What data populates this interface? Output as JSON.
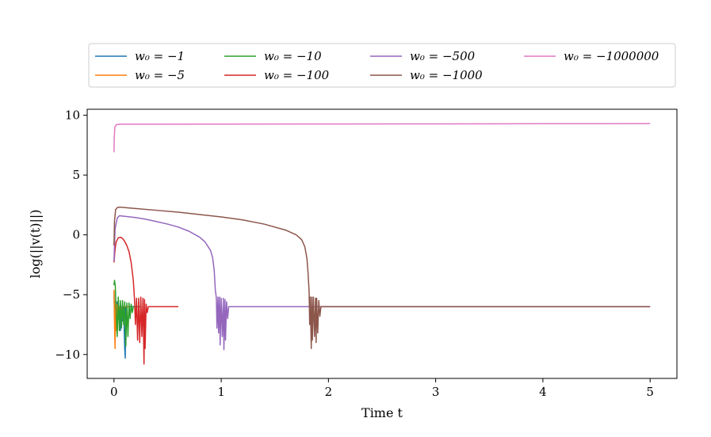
{
  "chart_data": {
    "type": "line",
    "title": "",
    "xlabel": "Time t",
    "ylabel": "log(||v(t)||)",
    "xlim": [
      -0.25,
      5.25
    ],
    "ylim": [
      -12,
      10.5
    ],
    "x_ticks": [
      0,
      1,
      2,
      3,
      4,
      5
    ],
    "x_tick_labels": [
      "0",
      "1",
      "2",
      "3",
      "4",
      "5"
    ],
    "y_ticks": [
      -10,
      -5,
      0,
      5,
      10
    ],
    "y_tick_labels": [
      "−10",
      "−5",
      "0",
      "5",
      "10"
    ],
    "grid": false,
    "legend_position": "top (above plot), 4 columns",
    "series": [
      {
        "name": "w₀ = −1",
        "color": "#1f77b4",
        "points": [
          [
            0,
            -4.8
          ],
          [
            0.005,
            -6.5
          ],
          [
            0.01,
            -8.2
          ],
          [
            0.015,
            -6.0
          ],
          [
            0.02,
            -7.5
          ],
          [
            0.03,
            -5.6
          ],
          [
            0.04,
            -7.0
          ],
          [
            0.05,
            -6.0
          ],
          [
            0.06,
            -8.0
          ],
          [
            0.07,
            -6.0
          ],
          [
            0.08,
            -7.2
          ],
          [
            0.09,
            -6.0
          ],
          [
            0.1,
            -9.5
          ],
          [
            0.105,
            -10.3
          ],
          [
            0.11,
            -6.0
          ],
          [
            0.13,
            -6.0
          ],
          [
            0.2,
            -6.0
          ]
        ]
      },
      {
        "name": "w₀ = −5",
        "color": "#ff7f0e",
        "points": [
          [
            0,
            -4.6
          ],
          [
            0.005,
            -7.5
          ],
          [
            0.01,
            -9.5
          ],
          [
            0.015,
            -5.5
          ],
          [
            0.02,
            -8.0
          ],
          [
            0.025,
            -5.8
          ],
          [
            0.03,
            -7.2
          ],
          [
            0.035,
            -6.0
          ],
          [
            0.04,
            -6.6
          ],
          [
            0.05,
            -6.0
          ],
          [
            0.06,
            -6.3
          ],
          [
            0.08,
            -6.0
          ],
          [
            0.15,
            -6.0
          ]
        ]
      },
      {
        "name": "w₀ = −10",
        "color": "#2ca02c",
        "points": [
          [
            0,
            -4.2
          ],
          [
            0.005,
            -3.8
          ],
          [
            0.012,
            -4.3
          ],
          [
            0.02,
            -6.3
          ],
          [
            0.03,
            -8.5
          ],
          [
            0.04,
            -5.2
          ],
          [
            0.05,
            -8.0
          ],
          [
            0.06,
            -5.5
          ],
          [
            0.07,
            -7.8
          ],
          [
            0.08,
            -5.5
          ],
          [
            0.09,
            -7.5
          ],
          [
            0.1,
            -5.6
          ],
          [
            0.11,
            -9.3
          ],
          [
            0.12,
            -5.7
          ],
          [
            0.13,
            -8.5
          ],
          [
            0.14,
            -5.7
          ],
          [
            0.15,
            -7.0
          ],
          [
            0.16,
            -5.8
          ],
          [
            0.17,
            -6.5
          ],
          [
            0.18,
            -6.0
          ],
          [
            0.2,
            -6.0
          ],
          [
            0.25,
            -6.0
          ]
        ]
      },
      {
        "name": "w₀ = −100",
        "color": "#d62728",
        "points": [
          [
            0,
            -2.3
          ],
          [
            0.01,
            -1.2
          ],
          [
            0.02,
            -0.6
          ],
          [
            0.04,
            -0.25
          ],
          [
            0.06,
            -0.2
          ],
          [
            0.08,
            -0.3
          ],
          [
            0.1,
            -0.55
          ],
          [
            0.12,
            -0.9
          ],
          [
            0.14,
            -1.4
          ],
          [
            0.16,
            -2.3
          ],
          [
            0.18,
            -3.8
          ],
          [
            0.19,
            -5.2
          ],
          [
            0.2,
            -7.5
          ],
          [
            0.21,
            -5.3
          ],
          [
            0.22,
            -8.8
          ],
          [
            0.23,
            -5.3
          ],
          [
            0.24,
            -9.0
          ],
          [
            0.25,
            -5.2
          ],
          [
            0.26,
            -8.5
          ],
          [
            0.27,
            -5.3
          ],
          [
            0.28,
            -10.8
          ],
          [
            0.285,
            -5.4
          ],
          [
            0.29,
            -9.5
          ],
          [
            0.3,
            -5.8
          ],
          [
            0.31,
            -6.5
          ],
          [
            0.32,
            -6.0
          ],
          [
            0.35,
            -6.0
          ],
          [
            0.5,
            -6.0
          ],
          [
            0.6,
            -6.0
          ]
        ]
      },
      {
        "name": "w₀ = −500",
        "color": "#9467bd",
        "points": [
          [
            0,
            -2.2
          ],
          [
            0.01,
            0.5
          ],
          [
            0.03,
            1.4
          ],
          [
            0.05,
            1.6
          ],
          [
            0.1,
            1.55
          ],
          [
            0.2,
            1.45
          ],
          [
            0.3,
            1.3
          ],
          [
            0.4,
            1.1
          ],
          [
            0.5,
            0.9
          ],
          [
            0.6,
            0.65
          ],
          [
            0.7,
            0.3
          ],
          [
            0.8,
            -0.2
          ],
          [
            0.85,
            -0.6
          ],
          [
            0.9,
            -1.3
          ],
          [
            0.92,
            -1.9
          ],
          [
            0.935,
            -3.0
          ],
          [
            0.945,
            -4.6
          ],
          [
            0.955,
            -5.3
          ],
          [
            0.96,
            -7.8
          ],
          [
            0.97,
            -5.2
          ],
          [
            0.975,
            -8.2
          ],
          [
            0.985,
            -5.2
          ],
          [
            0.99,
            -9.2
          ],
          [
            1.0,
            -5.3
          ],
          [
            1.01,
            -8.5
          ],
          [
            1.02,
            -5.3
          ],
          [
            1.025,
            -9.6
          ],
          [
            1.035,
            -5.4
          ],
          [
            1.04,
            -8.8
          ],
          [
            1.05,
            -5.6
          ],
          [
            1.06,
            -7.0
          ],
          [
            1.07,
            -6.0
          ],
          [
            1.1,
            -6.0
          ],
          [
            1.5,
            -6.0
          ],
          [
            2.0,
            -6.0
          ],
          [
            3.0,
            -6.0
          ],
          [
            4.0,
            -6.0
          ],
          [
            5.0,
            -6.0
          ]
        ]
      },
      {
        "name": "w₀ = −1000",
        "color": "#8c564b",
        "points": [
          [
            0,
            -0.9
          ],
          [
            0.005,
            1.2
          ],
          [
            0.015,
            2.1
          ],
          [
            0.03,
            2.28
          ],
          [
            0.05,
            2.32
          ],
          [
            0.2,
            2.2
          ],
          [
            0.4,
            2.05
          ],
          [
            0.6,
            1.9
          ],
          [
            0.8,
            1.7
          ],
          [
            1.0,
            1.5
          ],
          [
            1.2,
            1.25
          ],
          [
            1.4,
            0.9
          ],
          [
            1.6,
            0.4
          ],
          [
            1.7,
            0.0
          ],
          [
            1.75,
            -0.4
          ],
          [
            1.78,
            -1.0
          ],
          [
            1.8,
            -2.0
          ],
          [
            1.81,
            -3.2
          ],
          [
            1.82,
            -4.8
          ],
          [
            1.825,
            -7.5
          ],
          [
            1.83,
            -5.2
          ],
          [
            1.84,
            -9.5
          ],
          [
            1.845,
            -5.2
          ],
          [
            1.85,
            -8.8
          ],
          [
            1.86,
            -5.2
          ],
          [
            1.87,
            -8.5
          ],
          [
            1.88,
            -5.3
          ],
          [
            1.885,
            -9.0
          ],
          [
            1.89,
            -5.3
          ],
          [
            1.9,
            -8.2
          ],
          [
            1.91,
            -5.5
          ],
          [
            1.92,
            -6.8
          ],
          [
            1.93,
            -6.0
          ],
          [
            1.95,
            -6.0
          ],
          [
            2.5,
            -6.0
          ],
          [
            3.0,
            -6.0
          ],
          [
            4.0,
            -6.0
          ],
          [
            5.0,
            -6.0
          ]
        ]
      },
      {
        "name": "w₀ = −1000000",
        "color": "#e377c2",
        "points": [
          [
            0,
            6.9
          ],
          [
            0.003,
            8.2
          ],
          [
            0.008,
            9.0
          ],
          [
            0.02,
            9.2
          ],
          [
            0.05,
            9.25
          ],
          [
            0.5,
            9.25
          ],
          [
            1.0,
            9.26
          ],
          [
            2.0,
            9.27
          ],
          [
            3.0,
            9.28
          ],
          [
            4.0,
            9.29
          ],
          [
            5.0,
            9.3
          ]
        ]
      }
    ]
  }
}
